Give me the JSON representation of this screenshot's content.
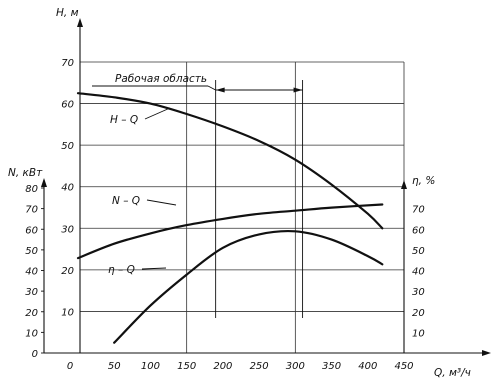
{
  "chart_data": {
    "type": "line",
    "title": "",
    "xlabel": "Q, м³/ч",
    "x_ticks": [
      "0",
      "50",
      "100",
      "150",
      "200",
      "250",
      "300",
      "350",
      "400",
      "450"
    ],
    "xlim": [
      0,
      450
    ],
    "axes": {
      "H": {
        "label": "H, м",
        "ticks": [
          "10",
          "20",
          "30",
          "40",
          "50",
          "60",
          "70"
        ],
        "range": [
          0,
          70
        ]
      },
      "N": {
        "label": "N, кВт",
        "ticks": [
          "0",
          "10",
          "20",
          "30",
          "40",
          "50",
          "60",
          "70",
          "80"
        ],
        "range": [
          0,
          80
        ]
      },
      "eta": {
        "label": "η, %",
        "ticks": [
          "10",
          "20",
          "30",
          "40",
          "50",
          "60",
          "70"
        ],
        "range": [
          0,
          80
        ]
      }
    },
    "series": [
      {
        "name": "H – Q",
        "axis": "H",
        "x": [
          0,
          50,
          100,
          150,
          200,
          250,
          300,
          350,
          400,
          420
        ],
        "y": [
          62.5,
          61.5,
          60,
          57.5,
          54.5,
          51,
          46.5,
          40.5,
          33.5,
          30
        ]
      },
      {
        "name": "N – Q",
        "axis": "N",
        "x": [
          0,
          50,
          100,
          150,
          200,
          250,
          300,
          350,
          420
        ],
        "y": [
          46,
          53,
          58,
          62,
          65,
          67.5,
          69,
          70.5,
          72
        ]
      },
      {
        "name": "η – Q",
        "axis": "eta",
        "x": [
          50,
          100,
          150,
          200,
          250,
          300,
          350,
          400,
          420
        ],
        "y": [
          5,
          23,
          38,
          51,
          57.5,
          59,
          55,
          47,
          43
        ]
      }
    ],
    "annotation": {
      "text": "Рабочая область",
      "x_range": [
        190,
        310
      ]
    }
  }
}
